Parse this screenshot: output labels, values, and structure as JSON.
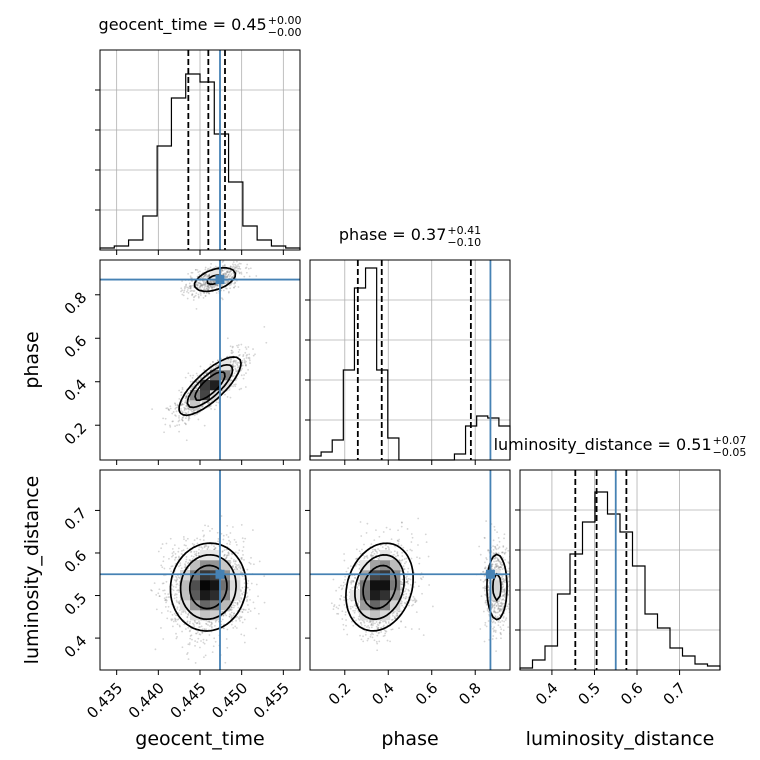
{
  "chart_data": {
    "type": "corner",
    "truth_color": "#4682b4",
    "contour_color": "#000000",
    "params": [
      {
        "key": "geocent_time",
        "label": "geocent_time",
        "title": {
          "prefix": "geocent_time = 0.45",
          "plus": "+0.00",
          "minus": "−0.00"
        },
        "range": [
          0.433,
          0.457
        ],
        "ticks": [
          0.435,
          0.44,
          0.445,
          0.45,
          0.455
        ],
        "tick_labels": [
          "0.435",
          "0.440",
          "0.445",
          "0.450",
          "0.455"
        ],
        "quantiles": [
          0.4436,
          0.446,
          0.448
        ],
        "truth": 0.4474,
        "hist": [
          0.01,
          0.02,
          0.05,
          0.17,
          0.52,
          0.76,
          0.88,
          0.84,
          0.58,
          0.34,
          0.12,
          0.05,
          0.02,
          0.01
        ],
        "hist_max": 1.0
      },
      {
        "key": "phase",
        "label": "phase",
        "title": {
          "prefix": "phase = 0.37",
          "plus": "+0.41",
          "minus": "−0.10"
        },
        "range": [
          0.04,
          0.96
        ],
        "ticks": [
          0.2,
          0.4,
          0.6,
          0.8
        ],
        "tick_labels": [
          "0.2",
          "0.4",
          "0.6",
          "0.8"
        ],
        "quantiles": [
          0.26,
          0.37,
          0.78
        ],
        "truth": 0.87,
        "hist": [
          0.02,
          0.04,
          0.1,
          0.45,
          0.86,
          0.96,
          0.45,
          0.11,
          0.0,
          0.0,
          0.0,
          0.0,
          0.0,
          0.03,
          0.17,
          0.22,
          0.21,
          0.17
        ],
        "hist_max": 1.0
      },
      {
        "key": "luminosity_distance",
        "label": "luminosity_distance",
        "title": {
          "prefix": "luminosity_distance = 0.51",
          "plus": "+0.07",
          "minus": "−0.05"
        },
        "range": [
          0.325,
          0.795
        ],
        "ticks": [
          0.4,
          0.5,
          0.6,
          0.7
        ],
        "tick_labels": [
          "0.4",
          "0.5",
          "0.6",
          "0.7"
        ],
        "quantiles": [
          0.455,
          0.505,
          0.575
        ],
        "truth": 0.55,
        "hist": [
          0.01,
          0.05,
          0.12,
          0.38,
          0.58,
          0.74,
          0.89,
          0.78,
          0.69,
          0.52,
          0.28,
          0.21,
          0.11,
          0.07,
          0.03,
          0.02
        ],
        "hist_max": 1.0
      }
    ],
    "pairs": [
      {
        "x": "geocent_time",
        "y": "phase",
        "modes": [
          {
            "mx": 0.4462,
            "my": 0.38,
            "sx": 0.0018,
            "sy": 0.065,
            "rho": 0.78,
            "w": 0.72
          },
          {
            "mx": 0.4468,
            "my": 0.87,
            "sx": 0.0016,
            "sy": 0.035,
            "rho": 0.45,
            "w": 0.28
          }
        ]
      },
      {
        "x": "geocent_time",
        "y": "luminosity_distance",
        "modes": [
          {
            "mx": 0.446,
            "my": 0.52,
            "sx": 0.0022,
            "sy": 0.05,
            "rho": 0.05,
            "w": 1.0
          }
        ]
      },
      {
        "x": "phase",
        "y": "luminosity_distance",
        "modes": [
          {
            "mx": 0.36,
            "my": 0.52,
            "sx": 0.075,
            "sy": 0.05,
            "rho": 0.2,
            "w": 0.72
          },
          {
            "mx": 0.9,
            "my": 0.52,
            "sx": 0.03,
            "sy": 0.05,
            "rho": 0.0,
            "w": 0.28
          }
        ]
      }
    ]
  }
}
